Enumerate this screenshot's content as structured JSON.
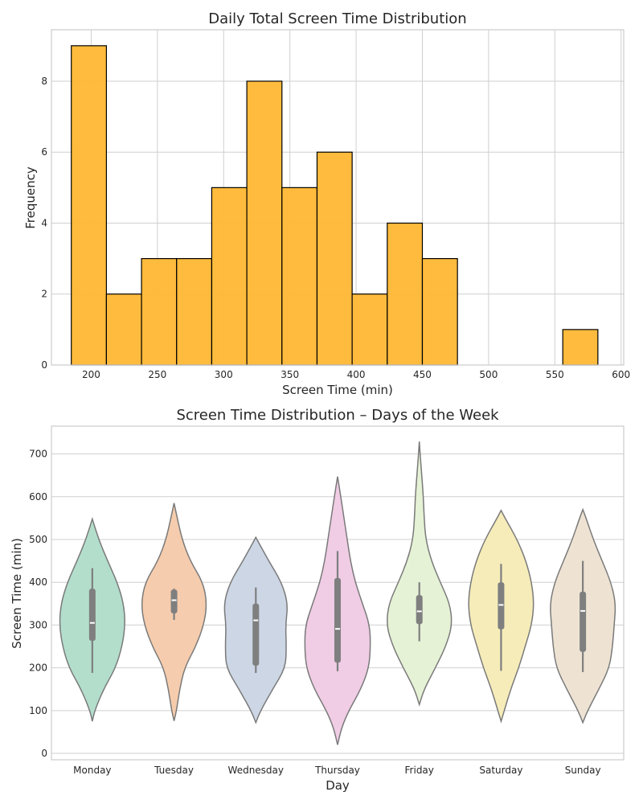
{
  "chart_data": [
    {
      "type": "bar",
      "subtype": "histogram",
      "title": "Daily Total Screen Time Distribution",
      "xlabel": "Screen Time (min)",
      "ylabel": "Frequency",
      "xlim": [
        170,
        602
      ],
      "ylim": [
        0,
        9.45
      ],
      "xticks": [
        200,
        250,
        300,
        350,
        400,
        450,
        500,
        550,
        600
      ],
      "yticks": [
        0,
        2,
        4,
        6,
        8
      ],
      "bar_color": "#FFB733",
      "edge_color": "#000000",
      "grid": true,
      "bins": [
        {
          "x0": 185,
          "x1": 211.5,
          "count": 9
        },
        {
          "x0": 211.5,
          "x1": 238,
          "count": 2
        },
        {
          "x0": 238,
          "x1": 264.5,
          "count": 3
        },
        {
          "x0": 264.5,
          "x1": 291,
          "count": 3
        },
        {
          "x0": 291,
          "x1": 317.5,
          "count": 5
        },
        {
          "x0": 317.5,
          "x1": 344,
          "count": 8
        },
        {
          "x0": 344,
          "x1": 370.5,
          "count": 5
        },
        {
          "x0": 370.5,
          "x1": 397,
          "count": 6
        },
        {
          "x0": 397,
          "x1": 423.5,
          "count": 2
        },
        {
          "x0": 423.5,
          "x1": 450,
          "count": 4
        },
        {
          "x0": 450,
          "x1": 476.5,
          "count": 3
        },
        {
          "x0": 476.5,
          "x1": 503,
          "count": 0
        },
        {
          "x0": 503,
          "x1": 529.5,
          "count": 0
        },
        {
          "x0": 529.5,
          "x1": 556,
          "count": 0
        },
        {
          "x0": 556,
          "x1": 582.5,
          "count": 1
        }
      ]
    },
    {
      "type": "violin",
      "title": "Screen Time Distribution – Days of the Week",
      "xlabel": "Day",
      "ylabel": "Screen Time (min)",
      "ylim": [
        -15,
        765
      ],
      "yticks": [
        0,
        100,
        200,
        300,
        400,
        500,
        600,
        700
      ],
      "grid": true,
      "categories": [
        "Monday",
        "Tuesday",
        "Wednesday",
        "Thursday",
        "Friday",
        "Saturday",
        "Sunday"
      ],
      "series": [
        {
          "category": "Monday",
          "color": "#B3DECC",
          "min_kde": 75,
          "max_kde": 548,
          "whisker": [
            188,
            433
          ],
          "q1": 263,
          "median": 305,
          "q3": 385,
          "profile": [
            [
              75,
              0
            ],
            [
              100,
              3
            ],
            [
              150,
              14
            ],
            [
              200,
              29
            ],
            [
              250,
              37
            ],
            [
              300,
              41
            ],
            [
              350,
              39
            ],
            [
              400,
              31
            ],
            [
              450,
              19
            ],
            [
              500,
              8
            ],
            [
              548,
              0
            ]
          ]
        },
        {
          "category": "Tuesday",
          "color": "#F5CCAD",
          "min_kde": 76,
          "max_kde": 585,
          "whisker": [
            312,
            385
          ],
          "q1": 327,
          "median": 358,
          "q3": 383,
          "profile": [
            [
              76,
              0
            ],
            [
              100,
              3
            ],
            [
              150,
              7
            ],
            [
              200,
              13
            ],
            [
              250,
              27
            ],
            [
              300,
              37
            ],
            [
              350,
              41
            ],
            [
              400,
              36
            ],
            [
              450,
              20
            ],
            [
              500,
              10
            ],
            [
              550,
              4
            ],
            [
              585,
              0
            ]
          ]
        },
        {
          "category": "Wednesday",
          "color": "#CCD6E5",
          "min_kde": 72,
          "max_kde": 505,
          "whisker": [
            188,
            388
          ],
          "q1": 205,
          "median": 311,
          "q3": 350,
          "profile": [
            [
              72,
              0
            ],
            [
              100,
              6
            ],
            [
              150,
              21
            ],
            [
              200,
              37
            ],
            [
              250,
              38
            ],
            [
              300,
              37
            ],
            [
              350,
              40
            ],
            [
              400,
              32
            ],
            [
              450,
              16
            ],
            [
              505,
              0
            ]
          ]
        },
        {
          "category": "Thursday",
          "color": "#F0CCE5",
          "min_kde": 20,
          "max_kde": 647,
          "whisker": [
            192,
            473
          ],
          "q1": 212,
          "median": 291,
          "q3": 410,
          "profile": [
            [
              20,
              0
            ],
            [
              60,
              5
            ],
            [
              100,
              14
            ],
            [
              150,
              29
            ],
            [
              200,
              39
            ],
            [
              250,
              41
            ],
            [
              300,
              40
            ],
            [
              350,
              31
            ],
            [
              400,
              22
            ],
            [
              450,
              16
            ],
            [
              500,
              12
            ],
            [
              550,
              8
            ],
            [
              600,
              4
            ],
            [
              647,
              0
            ]
          ]
        },
        {
          "category": "Friday",
          "color": "#E5F2D5",
          "min_kde": 114,
          "max_kde": 729,
          "whisker": [
            262,
            400
          ],
          "q1": 302,
          "median": 332,
          "q3": 370,
          "profile": [
            [
              114,
              0
            ],
            [
              150,
              6
            ],
            [
              200,
              20
            ],
            [
              250,
              33
            ],
            [
              300,
              41
            ],
            [
              350,
              38
            ],
            [
              400,
              26
            ],
            [
              450,
              15
            ],
            [
              500,
              8
            ],
            [
              550,
              6
            ],
            [
              600,
              5
            ],
            [
              650,
              3
            ],
            [
              700,
              1
            ],
            [
              729,
              0
            ]
          ]
        },
        {
          "category": "Saturday",
          "color": "#F5ECB9",
          "min_kde": 75,
          "max_kde": 568,
          "whisker": [
            193,
            443
          ],
          "q1": 290,
          "median": 347,
          "q3": 400,
          "profile": [
            [
              75,
              0
            ],
            [
              100,
              4
            ],
            [
              150,
              12
            ],
            [
              200,
              22
            ],
            [
              250,
              30
            ],
            [
              300,
              38
            ],
            [
              350,
              41
            ],
            [
              400,
              38
            ],
            [
              450,
              31
            ],
            [
              500,
              20
            ],
            [
              550,
              5
            ],
            [
              568,
              0
            ]
          ]
        },
        {
          "category": "Sunday",
          "color": "#EEE3D3",
          "min_kde": 72,
          "max_kde": 570,
          "whisker": [
            190,
            450
          ],
          "q1": 237,
          "median": 333,
          "q3": 378,
          "profile": [
            [
              72,
              0
            ],
            [
              100,
              6
            ],
            [
              150,
              20
            ],
            [
              200,
              33
            ],
            [
              250,
              37
            ],
            [
              300,
              39
            ],
            [
              350,
              41
            ],
            [
              400,
              35
            ],
            [
              450,
              24
            ],
            [
              500,
              13
            ],
            [
              550,
              4
            ],
            [
              570,
              0
            ]
          ]
        }
      ]
    }
  ]
}
